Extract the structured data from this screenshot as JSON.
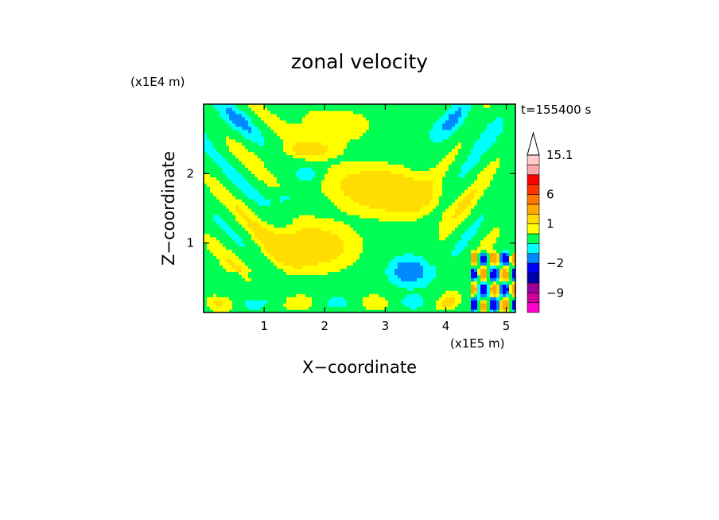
{
  "chart_data": {
    "type": "heatmap",
    "title": "zonal velocity",
    "xlabel": "X−coordinate",
    "ylabel": "Z−coordinate",
    "x_unit": "(x1E5 m)",
    "y_unit": "(x1E4 m)",
    "time_label": "t=155400 s",
    "xlim": [
      0,
      5.15
    ],
    "ylim": [
      0,
      3.0
    ],
    "x_ticks": [
      1,
      2,
      3,
      4,
      5
    ],
    "y_ticks": [
      1,
      2
    ],
    "colorbar": {
      "levels": [
        -15.1,
        -12,
        -9,
        -6,
        -4,
        -2,
        -1,
        -0.5,
        0.5,
        1,
        2,
        4,
        6,
        9,
        12,
        15.1
      ],
      "colors": [
        "#ff00cc",
        "#cc0099",
        "#990099",
        "#0000aa",
        "#0000ff",
        "#0088ff",
        "#00ffff",
        "#00ff55",
        "#ffff00",
        "#ffdd00",
        "#ffaa00",
        "#ff7700",
        "#ff3300",
        "#ff0000",
        "#ffaaaa",
        "#ffcccc"
      ],
      "tick_labels": [
        "15.1",
        "6",
        "1",
        "−2",
        "−9"
      ],
      "tick_values": [
        15.1,
        6,
        1,
        -2,
        -9
      ]
    }
  }
}
